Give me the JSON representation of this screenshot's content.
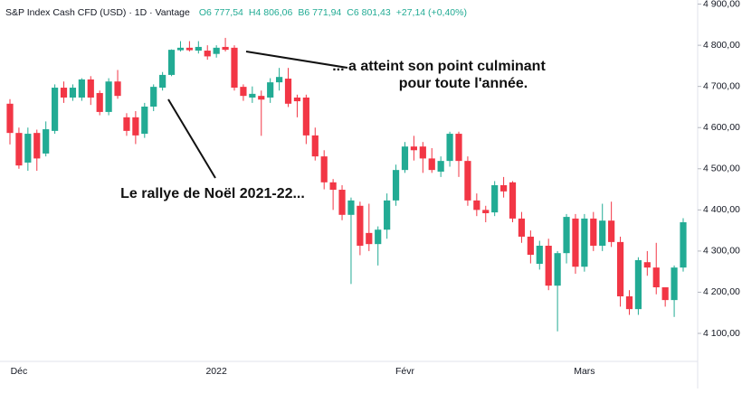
{
  "chart_data": {
    "type": "candlestick",
    "title": "S&P Index Cash CFD (USD) · 1D · Vantage",
    "header_values": [
      "O6 777,54",
      "H4 806,06",
      "B6 771,94",
      "C6 801,43",
      "+27,14 (+0,40%)"
    ],
    "annotations": [
      "... a atteint son point culminant",
      "pour toute l'année.",
      "Le rallye de Noël 2021-22..."
    ],
    "up_color": "#22ab94",
    "down_color": "#f23645",
    "ylim": [
      4032,
      4910
    ],
    "yticks": [
      {
        "value": 4100,
        "label": "4 100,00"
      },
      {
        "value": 4200,
        "label": "4 200,00"
      },
      {
        "value": 4300,
        "label": "4 300,00"
      },
      {
        "value": 4400,
        "label": "4 400,00"
      },
      {
        "value": 4500,
        "label": "4 500,00"
      },
      {
        "value": 4600,
        "label": "4 600,00"
      },
      {
        "value": 4700,
        "label": "4 700,00"
      },
      {
        "value": 4800,
        "label": "4 800,00"
      },
      {
        "value": 4900,
        "label": "4 900,00"
      }
    ],
    "categories": [
      null,
      "Déc",
      null,
      null,
      null,
      null,
      null,
      null,
      null,
      null,
      null,
      null,
      null,
      null,
      null,
      null,
      null,
      null,
      null,
      null,
      null,
      null,
      null,
      "2022",
      null,
      null,
      null,
      null,
      null,
      null,
      null,
      null,
      null,
      null,
      null,
      null,
      null,
      null,
      null,
      null,
      null,
      null,
      null,
      null,
      "Févr",
      null,
      null,
      null,
      null,
      null,
      null,
      null,
      null,
      null,
      null,
      null,
      null,
      null,
      null,
      null,
      null,
      null,
      null,
      null,
      "Mars",
      null,
      null,
      null,
      null,
      null,
      null,
      null,
      null,
      null,
      null,
      null
    ],
    "open": [
      4658,
      4587,
      4515,
      4587,
      4537,
      4592,
      4697,
      4673,
      4673,
      4717,
      4684,
      4638,
      4712,
      4625,
      4625,
      4585,
      4651,
      4697,
      4728,
      4788,
      4794,
      4787,
      4787,
      4779,
      4796,
      4794,
      4699,
      4673,
      4677,
      4673,
      4710,
      4719,
      4673,
      4673,
      4581,
      4530,
      4467,
      4449,
      4388,
      4410,
      4344,
      4317,
      4352,
      4423,
      4497,
      4554,
      4554,
      4525,
      4493,
      4519,
      4585,
      4519,
      4423,
      4400,
      4394,
      4460,
      4467,
      4379,
      4335,
      4269,
      4313,
      4216,
      4295,
      4379,
      4262,
      4379,
      4313,
      4374,
      4322,
      4190,
      4159,
      4273,
      4260,
      4212,
      4181,
      4260
    ],
    "high": [
      4669,
      4600,
      4600,
      4595,
      4615,
      4705,
      4712,
      4705,
      4720,
      4725,
      4690,
      4720,
      4740,
      4635,
      4640,
      4660,
      4705,
      4735,
      4790,
      4810,
      4810,
      4810,
      4800,
      4800,
      4818,
      4800,
      4705,
      4700,
      4690,
      4720,
      4745,
      4745,
      4680,
      4680,
      4600,
      4545,
      4475,
      4460,
      4430,
      4420,
      4415,
      4360,
      4440,
      4510,
      4565,
      4580,
      4565,
      4550,
      4530,
      4590,
      4590,
      4530,
      4440,
      4410,
      4470,
      4480,
      4470,
      4395,
      4350,
      4325,
      4330,
      4300,
      4390,
      4390,
      4390,
      4395,
      4415,
      4420,
      4335,
      4205,
      4285,
      4300,
      4320,
      4210,
      4265,
      4380
    ],
    "low": [
      4559,
      4500,
      4495,
      4495,
      4530,
      4585,
      4660,
      4665,
      4665,
      4655,
      4630,
      4630,
      4670,
      4580,
      4560,
      4575,
      4640,
      4690,
      4725,
      4785,
      4785,
      4780,
      4765,
      4770,
      4785,
      4690,
      4665,
      4660,
      4580,
      4660,
      4690,
      4650,
      4625,
      4560,
      4520,
      4450,
      4400,
      4375,
      4220,
      4290,
      4300,
      4265,
      4330,
      4410,
      4490,
      4520,
      4490,
      4490,
      4480,
      4505,
      4480,
      4410,
      4385,
      4370,
      4385,
      4430,
      4370,
      4320,
      4270,
      4255,
      4205,
      4105,
      4270,
      4245,
      4250,
      4300,
      4300,
      4310,
      4165,
      4145,
      4145,
      4240,
      4195,
      4165,
      4140,
      4250
    ],
    "close": [
      4587,
      4508,
      4585,
      4525,
      4596,
      4697,
      4673,
      4697,
      4717,
      4673,
      4638,
      4712,
      4677,
      4592,
      4581,
      4651,
      4699,
      4728,
      4789,
      4794,
      4788,
      4796,
      4773,
      4794,
      4789,
      4697,
      4677,
      4682,
      4668,
      4710,
      4723,
      4658,
      4664,
      4581,
      4530,
      4467,
      4449,
      4388,
      4423,
      4313,
      4317,
      4352,
      4423,
      4497,
      4554,
      4545,
      4525,
      4497,
      4519,
      4585,
      4519,
      4423,
      4400,
      4392,
      4460,
      4445,
      4379,
      4335,
      4291,
      4313,
      4216,
      4295,
      4383,
      4262,
      4379,
      4313,
      4374,
      4322,
      4190,
      4159,
      4278,
      4260,
      4212,
      4181,
      4260,
      4370
    ]
  }
}
